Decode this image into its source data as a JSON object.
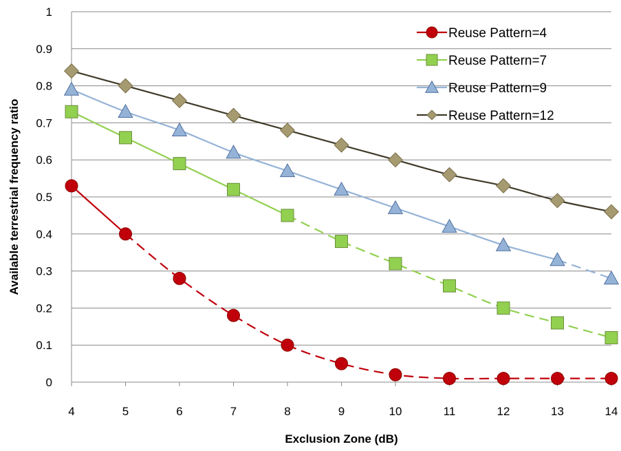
{
  "chart_data": {
    "type": "line",
    "xlabel": "Exclusion Zone (dB)",
    "ylabel": "Available terrestrial frequency ratio",
    "x": [
      4,
      5,
      6,
      7,
      8,
      9,
      10,
      11,
      12,
      13,
      14
    ],
    "xlim": [
      4,
      14
    ],
    "ylim": [
      0,
      1
    ],
    "yticks": [
      0,
      0.1,
      0.2,
      0.3,
      0.4,
      0.5,
      0.6,
      0.7,
      0.8,
      0.9,
      1
    ],
    "grid": "horizontal",
    "legend_position": "top-right",
    "series": [
      {
        "name": "Reuse Pattern=4",
        "values": [
          0.53,
          0.4,
          0.28,
          0.18,
          0.1,
          0.05,
          0.02,
          0.01,
          0.01,
          0.01,
          0.01
        ],
        "color": "#C0000B",
        "marker": "circle",
        "solid_until_index": 1
      },
      {
        "name": "Reuse Pattern=7",
        "values": [
          0.73,
          0.66,
          0.59,
          0.52,
          0.45,
          0.38,
          0.32,
          0.26,
          0.2,
          0.16,
          0.12
        ],
        "color": "#92D050",
        "marker": "square",
        "solid_until_index": 4
      },
      {
        "name": "Reuse Pattern=9",
        "values": [
          0.79,
          0.73,
          0.68,
          0.62,
          0.57,
          0.52,
          0.47,
          0.42,
          0.37,
          0.33,
          0.28
        ],
        "color": "#95B3D7",
        "marker": "triangle",
        "solid_until_index": 9
      },
      {
        "name": "Reuse Pattern=12",
        "values": [
          0.84,
          0.8,
          0.76,
          0.72,
          0.68,
          0.64,
          0.6,
          0.56,
          0.53,
          0.49,
          0.46
        ],
        "color": "#3F3A28",
        "marker": "diamond",
        "marker_color": "#A69A70",
        "solid_until_index": 10
      }
    ]
  }
}
